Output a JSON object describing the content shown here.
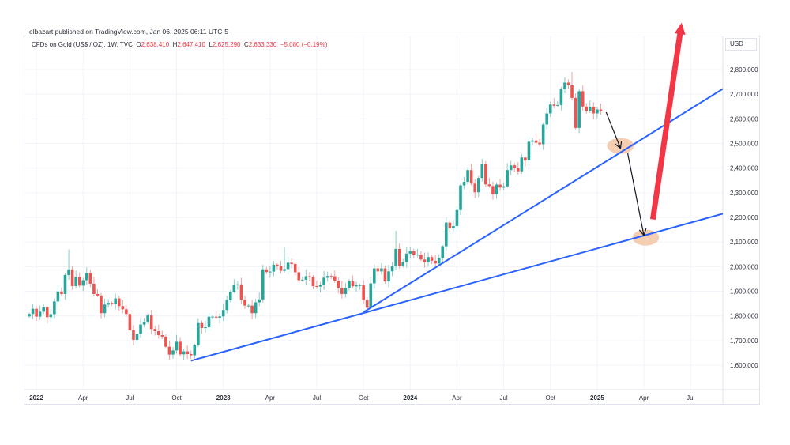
{
  "publisher_line": "elbazart published on TradingView.com, Jan 06, 2025 06:11 UTC-5",
  "legend": {
    "symbol": "CFDs on Gold (US$ / OZ), 1W, TVC",
    "open_label": "O",
    "open": "2,638.410",
    "high_label": "H",
    "high": "2,647.410",
    "low_label": "L",
    "low": "2,625.290",
    "close_label": "C",
    "close": "2,633.330",
    "change": "−5.080 (−0.19%)"
  },
  "currency": "USD",
  "colors": {
    "up": "#26a69a",
    "down": "#ef5350",
    "trendline": "#2962ff",
    "arrow_up": "#f23645",
    "ellipse": "#f5c6a5"
  },
  "chart_data": {
    "type": "candlestick",
    "title": "CFDs on Gold (US$ / OZ), 1W, TVC",
    "interval": "1W",
    "first_week": "2021-12-20",
    "first_open": 1798,
    "close": [
      1808,
      1829,
      1797,
      1817,
      1835,
      1795,
      1807,
      1859,
      1899,
      1889,
      1966,
      1989,
      1921,
      1958,
      1923,
      1945,
      1974,
      1931,
      1889,
      1883,
      1811,
      1846,
      1853,
      1850,
      1871,
      1840,
      1827,
      1808,
      1742,
      1703,
      1727,
      1765,
      1775,
      1802,
      1747,
      1738,
      1722,
      1716,
      1675,
      1643,
      1660,
      1695,
      1644,
      1656,
      1645,
      1640,
      1681,
      1771,
      1751,
      1754,
      1797,
      1797,
      1793,
      1798,
      1824,
      1865,
      1898,
      1927,
      1928,
      1865,
      1842,
      1842,
      1811,
      1855,
      1867,
      1989,
      1978,
      1980,
      2008,
      2004,
      1983,
      1990,
      2016,
      2011,
      1977,
      1945,
      1947,
      1961,
      1958,
      1921,
      1919,
      1925,
      1955,
      1962,
      1961,
      1943,
      1914,
      1889,
      1914,
      1940,
      1920,
      1924,
      1925,
      1865,
      1833,
      1932,
      1993,
      1981,
      1993,
      1940,
      1981,
      2002,
      2072,
      2004,
      2019,
      2053,
      2063,
      2049,
      2049,
      2029,
      2018,
      2039,
      2024,
      2013,
      2035,
      2083,
      2179,
      2155,
      2165,
      2230,
      2330,
      2344,
      2392,
      2337,
      2302,
      2360,
      2415,
      2334,
      2327,
      2294,
      2333,
      2321,
      2326,
      2392,
      2411,
      2400,
      2387,
      2443,
      2431,
      2507,
      2512,
      2503,
      2497,
      2577,
      2622,
      2658,
      2653,
      2656,
      2721,
      2747,
      2736,
      2685,
      2563,
      2712,
      2650,
      2633,
      2648,
      2622,
      2638,
      2633.33
    ],
    "notable_highs": {
      "11": 2070,
      "71": 2080,
      "102": 2146,
      "151": 2790
    },
    "y_axis": {
      "ticks": [
        "2,800.000",
        "2,700.000",
        "2,600.000",
        "2,500.000",
        "2,400.000",
        "2,300.000",
        "2,200.000",
        "2,100.000",
        "2,000.000",
        "1,900.000",
        "1,800.000",
        "1,700.000",
        "1,600.000"
      ],
      "values": [
        2800,
        2700,
        2600,
        2500,
        2400,
        2300,
        2200,
        2100,
        2000,
        1900,
        1800,
        1700,
        1600
      ],
      "range": [
        1480,
        2930
      ]
    },
    "x_axis": {
      "ticks": [
        {
          "label": "2022",
          "week": 2,
          "year": true
        },
        {
          "label": "Apr",
          "week": 15
        },
        {
          "label": "Jul",
          "week": 28
        },
        {
          "label": "Oct",
          "week": 41
        },
        {
          "label": "2023",
          "week": 54,
          "year": true
        },
        {
          "label": "Apr",
          "week": 67
        },
        {
          "label": "Jul",
          "week": 80
        },
        {
          "label": "Oct",
          "week": 93
        },
        {
          "label": "2024",
          "week": 106,
          "year": true
        },
        {
          "label": "Apr",
          "week": 119
        },
        {
          "label": "Jul",
          "week": 132
        },
        {
          "label": "Oct",
          "week": 145
        },
        {
          "label": "2025",
          "week": 158,
          "year": true
        },
        {
          "label": "Apr",
          "week": 171
        },
        {
          "label": "Jul",
          "week": 184
        }
      ]
    },
    "drawings": {
      "trendlines": [
        {
          "name": "lower-trendline",
          "from": {
            "week": 45,
            "price": 1618
          },
          "to": {
            "week": 193,
            "price": 2215
          }
        },
        {
          "name": "upper-trendline",
          "from": {
            "week": 93,
            "price": 1815
          },
          "to": {
            "week": 193,
            "price": 2722
          }
        }
      ],
      "ellipses": [
        {
          "week": 164.5,
          "price": 2490
        },
        {
          "week": 171.5,
          "price": 2118
        }
      ],
      "arrows": [
        {
          "name": "down-arrow-1",
          "from": {
            "week": 160.5,
            "price": 2627
          },
          "to": {
            "week": 164.5,
            "price": 2480
          },
          "color": "#131722"
        },
        {
          "name": "down-arrow-2",
          "from": {
            "week": 166.5,
            "price": 2460
          },
          "to": {
            "week": 171,
            "price": 2127
          },
          "color": "#131722"
        },
        {
          "name": "up-arrow",
          "from": {
            "week": 173.5,
            "price": 2192
          },
          "to": {
            "week": 181.5,
            "price": 2990
          },
          "color": "#f23645"
        }
      ]
    }
  }
}
